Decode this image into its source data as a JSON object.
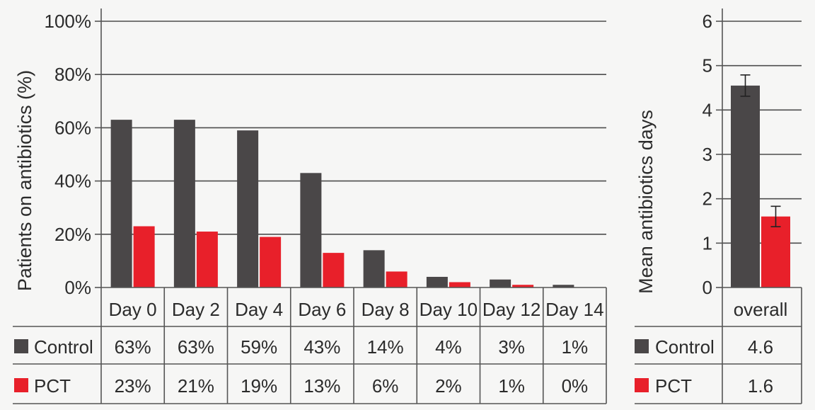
{
  "chart_data": [
    {
      "type": "bar",
      "ylabel": "Patients on antibiotics (%)",
      "categories": [
        "Day 0",
        "Day 2",
        "Day 4",
        "Day 6",
        "Day 8",
        "Day 10",
        "Day 12",
        "Day 14"
      ],
      "ylim": [
        0,
        100
      ],
      "yticks": [
        "0%",
        "20%",
        "40%",
        "60%",
        "80%",
        "100%"
      ],
      "grid": true,
      "series": [
        {
          "name": "Control",
          "color": "#4a4748",
          "values": [
            63,
            63,
            59,
            43,
            14,
            4,
            3,
            1
          ],
          "labels": [
            "63%",
            "63%",
            "59%",
            "43%",
            "14%",
            "4%",
            "3%",
            "1%"
          ]
        },
        {
          "name": "PCT",
          "color": "#e8202a",
          "values": [
            23,
            21,
            19,
            13,
            6,
            2,
            1,
            0
          ],
          "labels": [
            "23%",
            "21%",
            "19%",
            "13%",
            "6%",
            "2%",
            "1%",
            "0%"
          ]
        }
      ]
    },
    {
      "type": "bar",
      "ylabel": "Mean antibiotics days",
      "categories": [
        "overall"
      ],
      "ylim": [
        0,
        6
      ],
      "yticks": [
        "0",
        "1",
        "2",
        "3",
        "4",
        "5",
        "6"
      ],
      "grid": true,
      "series": [
        {
          "name": "Control",
          "color": "#4a4748",
          "values": [
            4.55
          ],
          "error": [
            0.24
          ],
          "labels": [
            "4.6"
          ]
        },
        {
          "name": "PCT",
          "color": "#e8202a",
          "values": [
            1.6
          ],
          "error": [
            0.23
          ],
          "labels": [
            "1.6"
          ]
        }
      ]
    }
  ]
}
